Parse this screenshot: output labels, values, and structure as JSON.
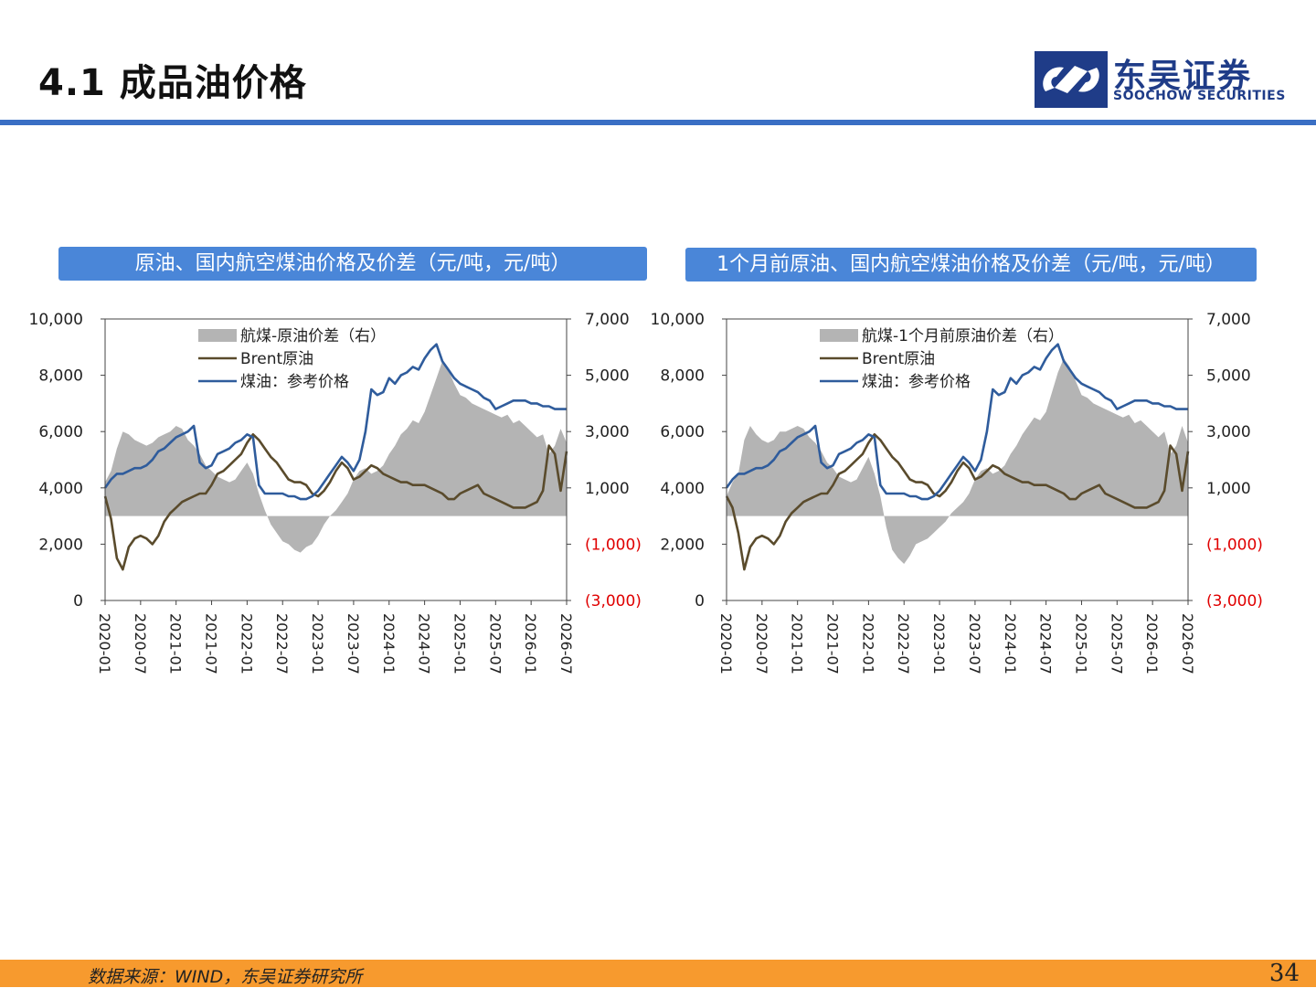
{
  "header": {
    "title": "4.1 成品油价格",
    "logo_cn": "东吴证券",
    "logo_en": "SOOCHOW SECURITIES"
  },
  "colors": {
    "accent": "#3a6fc4",
    "chart_header_bg": "#4a86d8",
    "spread_fill": "#b4b4b4",
    "brent_line": "#5a4b2c",
    "kerosene_line": "#2f5c9c",
    "negative_tick": "#e00000",
    "footer_bg": "#f79a2e"
  },
  "footer": {
    "source": "数据来源：WIND，东吴证券研究所",
    "page_number": "34"
  },
  "chart_data": [
    {
      "type": "line",
      "title": "原油、国内航空煤油价格及价差（元/吨，元/吨）",
      "y_left": {
        "range": [
          0,
          10000
        ],
        "ticks": [
          "10,000",
          "8,000",
          "6,000",
          "4,000",
          "2,000",
          "0"
        ]
      },
      "y_right": {
        "range": [
          -3000,
          7000
        ],
        "ticks": [
          "7,000",
          "5,000",
          "3,000",
          "1,000",
          "(1,000)",
          "(3,000)"
        ]
      },
      "x_ticks": [
        "2020-01",
        "2020-07",
        "2021-01",
        "2021-07",
        "2022-01",
        "2022-07",
        "2023-01",
        "2023-07",
        "2024-01",
        "2024-07",
        "2025-01",
        "2025-07",
        "2026-01",
        "2026-07"
      ],
      "x_range": [
        0,
        78
      ],
      "legend": {
        "placement": "top-center",
        "entries": [
          "航煤-原油价差（右）",
          "Brent原油",
          "煤油：参考价格"
        ]
      },
      "series": [
        {
          "name": "航煤-原油价差（右）",
          "axis": "right",
          "style": "area",
          "x": [
            0,
            1,
            2,
            3,
            4,
            5,
            6,
            7,
            8,
            9,
            10,
            11,
            12,
            13,
            14,
            15,
            16,
            17,
            18,
            19,
            20,
            21,
            22,
            23,
            24,
            25,
            26,
            27,
            28,
            29,
            30,
            31,
            32,
            33,
            34,
            35,
            36,
            37,
            38,
            39,
            40,
            41,
            42,
            43,
            44,
            45,
            46,
            47,
            48,
            49,
            50,
            51,
            52,
            53,
            54,
            55,
            56,
            57,
            58,
            59,
            60,
            61,
            62,
            63,
            64,
            65,
            66,
            67,
            68,
            69,
            70,
            71,
            72,
            73,
            74,
            75,
            76,
            77,
            78
          ],
          "values": [
            1200,
            1600,
            2400,
            3000,
            2900,
            2700,
            2600,
            2500,
            2600,
            2800,
            2900,
            3000,
            3200,
            3100,
            2700,
            2500,
            2200,
            1800,
            1600,
            1400,
            1300,
            1200,
            1300,
            1600,
            1900,
            1500,
            800,
            200,
            -300,
            -600,
            -900,
            -1000,
            -1200,
            -1300,
            -1100,
            -1000,
            -700,
            -300,
            0,
            200,
            500,
            800,
            1300,
            1600,
            1700,
            1500,
            1600,
            1800,
            2200,
            2500,
            2900,
            3100,
            3400,
            3300,
            3700,
            4300,
            4900,
            5500,
            5200,
            4700,
            4300,
            4200,
            4000,
            3900,
            3800,
            3700,
            3600,
            3500,
            3600,
            3300,
            3400,
            3200,
            3000,
            2800,
            2900,
            2200,
            2500,
            3100,
            2600
          ]
        },
        {
          "name": "Brent原油",
          "axis": "left",
          "style": "line",
          "x": [
            0,
            1,
            2,
            3,
            4,
            5,
            6,
            7,
            8,
            9,
            10,
            11,
            12,
            13,
            14,
            15,
            16,
            17,
            18,
            19,
            20,
            21,
            22,
            23,
            24,
            25,
            26,
            27,
            28,
            29,
            30,
            31,
            32,
            33,
            34,
            35,
            36,
            37,
            38,
            39,
            40,
            41,
            42,
            43,
            44,
            45,
            46,
            47,
            48,
            49,
            50,
            51,
            52,
            53,
            54,
            55,
            56,
            57,
            58,
            59,
            60,
            61,
            62,
            63,
            64,
            65,
            66,
            67,
            68,
            69,
            70,
            71,
            72,
            73,
            74,
            75,
            76,
            77,
            78
          ],
          "values": [
            3700,
            2900,
            1500,
            1100,
            1900,
            2200,
            2300,
            2200,
            2000,
            2300,
            2800,
            3100,
            3300,
            3500,
            3600,
            3700,
            3800,
            3800,
            4100,
            4500,
            4600,
            4800,
            5000,
            5200,
            5600,
            5900,
            5700,
            5400,
            5100,
            4900,
            4600,
            4300,
            4200,
            4200,
            4100,
            3800,
            3700,
            3900,
            4200,
            4600,
            4900,
            4700,
            4300,
            4400,
            4600,
            4800,
            4700,
            4500,
            4400,
            4300,
            4200,
            4200,
            4100,
            4100,
            4100,
            4000,
            3900,
            3800,
            3600,
            3600,
            3800,
            3900,
            4000,
            4100,
            3800,
            3700,
            3600,
            3500,
            3400,
            3300,
            3300,
            3300,
            3400,
            3500,
            3900,
            5500,
            5200,
            3900,
            5300
          ]
        },
        {
          "name": "煤油：参考价格",
          "axis": "left",
          "style": "line",
          "x": [
            0,
            1,
            2,
            3,
            4,
            5,
            6,
            7,
            8,
            9,
            10,
            11,
            12,
            13,
            14,
            15,
            16,
            17,
            18,
            19,
            20,
            21,
            22,
            23,
            24,
            25,
            26,
            27,
            28,
            29,
            30,
            31,
            32,
            33,
            34,
            35,
            36,
            37,
            38,
            39,
            40,
            41,
            42,
            43,
            44,
            45,
            46,
            47,
            48,
            49,
            50,
            51,
            52,
            53,
            54,
            55,
            56,
            57,
            58,
            59,
            60,
            61,
            62,
            63,
            64,
            65,
            66,
            67,
            68,
            69,
            70,
            71,
            72,
            73,
            74,
            75,
            76,
            77,
            78
          ],
          "values": [
            4000,
            4300,
            4500,
            4500,
            4600,
            4700,
            4700,
            4800,
            5000,
            5300,
            5400,
            5600,
            5800,
            5900,
            6000,
            6200,
            4900,
            4700,
            4800,
            5200,
            5300,
            5400,
            5600,
            5700,
            5900,
            5800,
            4100,
            3800,
            3800,
            3800,
            3800,
            3700,
            3700,
            3600,
            3600,
            3700,
            3900,
            4200,
            4500,
            4800,
            5100,
            4900,
            4600,
            5000,
            6000,
            7500,
            7300,
            7400,
            7900,
            7700,
            8000,
            8100,
            8300,
            8200,
            8600,
            8900,
            9100,
            8500,
            8200,
            7900,
            7700,
            7600,
            7500,
            7400,
            7200,
            7100,
            6800,
            6900,
            7000,
            7100,
            7100,
            7100,
            7000,
            7000,
            6900,
            6900,
            6800,
            6800,
            6800
          ]
        }
      ]
    },
    {
      "type": "line",
      "title": "1个月前原油、国内航空煤油价格及价差（元/吨，元/吨）",
      "y_left": {
        "range": [
          0,
          10000
        ],
        "ticks": [
          "10,000",
          "8,000",
          "6,000",
          "4,000",
          "2,000",
          "0"
        ]
      },
      "y_right": {
        "range": [
          -3000,
          7000
        ],
        "ticks": [
          "7,000",
          "5,000",
          "3,000",
          "1,000",
          "(1,000)",
          "(3,000)"
        ]
      },
      "x_ticks": [
        "2020-01",
        "2020-07",
        "2021-01",
        "2021-07",
        "2022-01",
        "2022-07",
        "2023-01",
        "2023-07",
        "2024-01",
        "2024-07",
        "2025-01",
        "2025-07",
        "2026-01",
        "2026-07"
      ],
      "x_range": [
        0,
        78
      ],
      "legend": {
        "placement": "top-center",
        "entries": [
          "航煤-1个月前原油价差（右）",
          "Brent原油",
          "煤油：参考价格"
        ]
      },
      "series": [
        {
          "name": "航煤-1个月前原油价差（右）",
          "axis": "right",
          "style": "area",
          "x": [
            0,
            1,
            2,
            3,
            4,
            5,
            6,
            7,
            8,
            9,
            10,
            11,
            12,
            13,
            14,
            15,
            16,
            17,
            18,
            19,
            20,
            21,
            22,
            23,
            24,
            25,
            26,
            27,
            28,
            29,
            30,
            31,
            32,
            33,
            34,
            35,
            36,
            37,
            38,
            39,
            40,
            41,
            42,
            43,
            44,
            45,
            46,
            47,
            48,
            49,
            50,
            51,
            52,
            53,
            54,
            55,
            56,
            57,
            58,
            59,
            60,
            61,
            62,
            63,
            64,
            65,
            66,
            67,
            68,
            69,
            70,
            71,
            72,
            73,
            74,
            75,
            76,
            77,
            78
          ],
          "values": [
            700,
            1200,
            1500,
            2700,
            3200,
            2900,
            2700,
            2600,
            2700,
            3000,
            3000,
            3100,
            3200,
            3100,
            2800,
            2600,
            2300,
            1900,
            1700,
            1400,
            1300,
            1200,
            1300,
            1700,
            2100,
            1500,
            700,
            -400,
            -1200,
            -1500,
            -1700,
            -1400,
            -1000,
            -900,
            -800,
            -600,
            -400,
            -200,
            100,
            300,
            500,
            800,
            1300,
            1600,
            1700,
            1500,
            1600,
            1800,
            2200,
            2500,
            2900,
            3200,
            3500,
            3400,
            3700,
            4400,
            5100,
            5600,
            5300,
            4800,
            4300,
            4200,
            4000,
            3900,
            3800,
            3700,
            3600,
            3500,
            3600,
            3300,
            3400,
            3200,
            3000,
            2800,
            3000,
            2200,
            2500,
            3200,
            2600
          ]
        },
        {
          "name": "Brent原油",
          "axis": "left",
          "style": "line",
          "x": [
            0,
            1,
            2,
            3,
            4,
            5,
            6,
            7,
            8,
            9,
            10,
            11,
            12,
            13,
            14,
            15,
            16,
            17,
            18,
            19,
            20,
            21,
            22,
            23,
            24,
            25,
            26,
            27,
            28,
            29,
            30,
            31,
            32,
            33,
            34,
            35,
            36,
            37,
            38,
            39,
            40,
            41,
            42,
            43,
            44,
            45,
            46,
            47,
            48,
            49,
            50,
            51,
            52,
            53,
            54,
            55,
            56,
            57,
            58,
            59,
            60,
            61,
            62,
            63,
            64,
            65,
            66,
            67,
            68,
            69,
            70,
            71,
            72,
            73,
            74,
            75,
            76,
            77,
            78
          ],
          "values": [
            3700,
            3300,
            2400,
            1100,
            1900,
            2200,
            2300,
            2200,
            2000,
            2300,
            2800,
            3100,
            3300,
            3500,
            3600,
            3700,
            3800,
            3800,
            4100,
            4500,
            4600,
            4800,
            5000,
            5200,
            5600,
            5900,
            5700,
            5400,
            5100,
            4900,
            4600,
            4300,
            4200,
            4200,
            4100,
            3800,
            3700,
            3900,
            4200,
            4600,
            4900,
            4700,
            4300,
            4400,
            4600,
            4800,
            4700,
            4500,
            4400,
            4300,
            4200,
            4200,
            4100,
            4100,
            4100,
            4000,
            3900,
            3800,
            3600,
            3600,
            3800,
            3900,
            4000,
            4100,
            3800,
            3700,
            3600,
            3500,
            3400,
            3300,
            3300,
            3300,
            3400,
            3500,
            3900,
            5500,
            5200,
            3900,
            5300
          ]
        },
        {
          "name": "煤油：参考价格",
          "axis": "left",
          "style": "line",
          "x": [
            0,
            1,
            2,
            3,
            4,
            5,
            6,
            7,
            8,
            9,
            10,
            11,
            12,
            13,
            14,
            15,
            16,
            17,
            18,
            19,
            20,
            21,
            22,
            23,
            24,
            25,
            26,
            27,
            28,
            29,
            30,
            31,
            32,
            33,
            34,
            35,
            36,
            37,
            38,
            39,
            40,
            41,
            42,
            43,
            44,
            45,
            46,
            47,
            48,
            49,
            50,
            51,
            52,
            53,
            54,
            55,
            56,
            57,
            58,
            59,
            60,
            61,
            62,
            63,
            64,
            65,
            66,
            67,
            68,
            69,
            70,
            71,
            72,
            73,
            74,
            75,
            76,
            77,
            78
          ],
          "values": [
            4000,
            4300,
            4500,
            4500,
            4600,
            4700,
            4700,
            4800,
            5000,
            5300,
            5400,
            5600,
            5800,
            5900,
            6000,
            6200,
            4900,
            4700,
            4800,
            5200,
            5300,
            5400,
            5600,
            5700,
            5900,
            5800,
            4100,
            3800,
            3800,
            3800,
            3800,
            3700,
            3700,
            3600,
            3600,
            3700,
            3900,
            4200,
            4500,
            4800,
            5100,
            4900,
            4600,
            5000,
            6000,
            7500,
            7300,
            7400,
            7900,
            7700,
            8000,
            8100,
            8300,
            8200,
            8600,
            8900,
            9100,
            8500,
            8200,
            7900,
            7700,
            7600,
            7500,
            7400,
            7200,
            7100,
            6800,
            6900,
            7000,
            7100,
            7100,
            7100,
            7000,
            7000,
            6900,
            6900,
            6800,
            6800,
            6800
          ]
        }
      ]
    }
  ]
}
